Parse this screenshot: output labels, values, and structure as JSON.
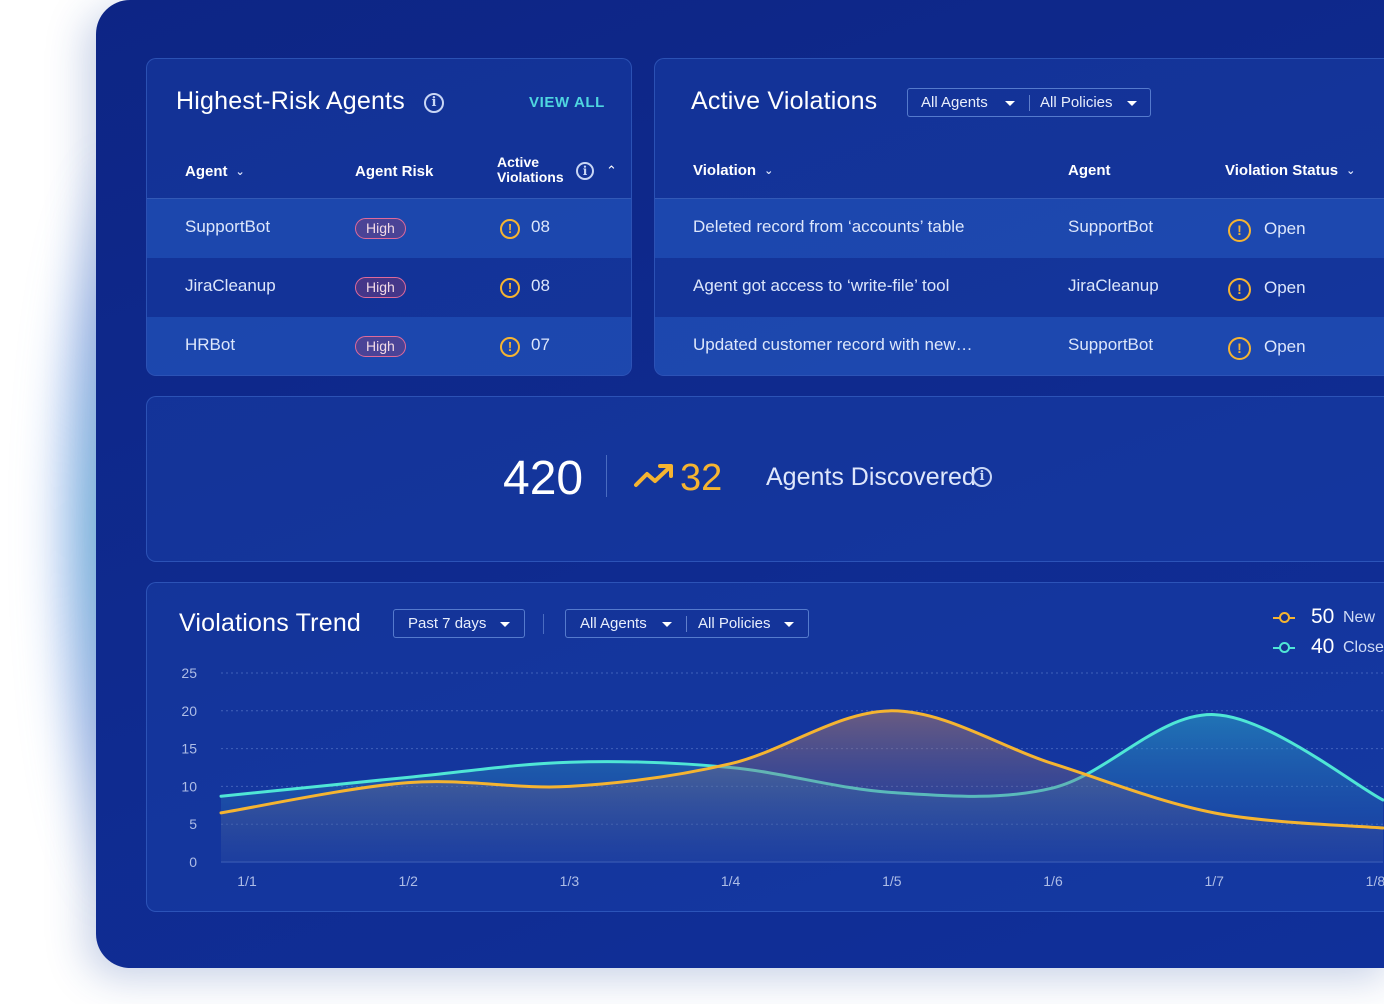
{
  "risk_agents": {
    "title": "Highest-Risk Agents",
    "view_all": "VIEW ALL",
    "headers": {
      "agent": "Agent",
      "risk": "Agent Risk",
      "active_line1": "Active",
      "active_line2": "Violations"
    },
    "rows": [
      {
        "agent": "SupportBot",
        "risk": "High",
        "count": "08"
      },
      {
        "agent": "JiraCleanup",
        "risk": "High",
        "count": "08"
      },
      {
        "agent": "HRBot",
        "risk": "High",
        "count": "07"
      }
    ]
  },
  "violations": {
    "title": "Active Violations",
    "filters": {
      "agents": "All Agents",
      "policies": "All Policies"
    },
    "headers": {
      "violation": "Violation",
      "agent": "Agent",
      "status": "Violation Status"
    },
    "rows": [
      {
        "violation": "Deleted record from ‘accounts’ table",
        "agent": "SupportBot",
        "status": "Open"
      },
      {
        "violation": "Agent got access to ‘write-file’ tool",
        "agent": "JiraCleanup",
        "status": "Open"
      },
      {
        "violation": "Updated customer record with new…",
        "agent": "SupportBot",
        "status": "Open"
      }
    ]
  },
  "discovered": {
    "total": "420",
    "delta": "32",
    "label": "Agents Discovered"
  },
  "trend": {
    "title": "Violations Trend",
    "period": "Past 7 days",
    "filters": {
      "agents": "All Agents",
      "policies": "All Policies"
    },
    "legend": [
      {
        "value": "50",
        "label": "New",
        "color": "#f5b431"
      },
      {
        "value": "40",
        "label": "Closed",
        "color": "#4fe6d6"
      }
    ]
  },
  "chart_data": {
    "type": "area",
    "x": [
      "1/1",
      "1/2",
      "1/3",
      "1/4",
      "1/5",
      "1/6",
      "1/7",
      "1/8"
    ],
    "y_ticks": [
      0,
      5,
      10,
      15,
      20,
      25
    ],
    "ylim": [
      0,
      25
    ],
    "series": [
      {
        "name": "New",
        "color": "#f5b431",
        "values": [
          6.5,
          10.5,
          10,
          13,
          20,
          13,
          6.5,
          4.5
        ]
      },
      {
        "name": "Closed",
        "color": "#4fe6d6",
        "values": [
          8.7,
          11.2,
          13.2,
          12.5,
          9.2,
          9.8,
          19.5,
          8.2
        ]
      }
    ]
  },
  "icons": {
    "info": "info-icon",
    "warning": "warning-icon",
    "trend_up": "trend-up-icon",
    "chevron": "chevron-down-icon",
    "caret": "caret-down-icon"
  }
}
